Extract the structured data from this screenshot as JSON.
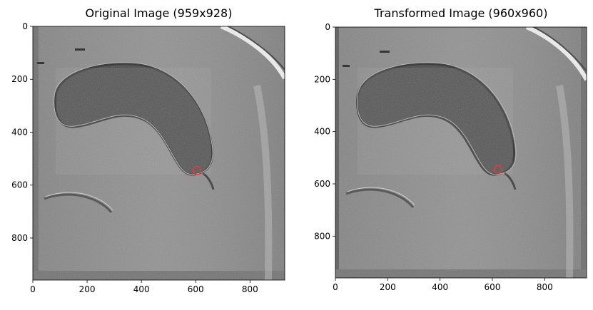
{
  "chart_data": [
    {
      "type": "image",
      "title": "Original Image (959x928)",
      "xlim": [
        0,
        928
      ],
      "ylim": [
        959,
        0
      ],
      "xticks": [
        0,
        200,
        400,
        600,
        800
      ],
      "yticks": [
        0,
        200,
        400,
        600,
        800
      ],
      "marker": {
        "shape": "circle",
        "x": 605,
        "y": 545,
        "radius": 15,
        "color": "#ff3333"
      },
      "colors": {
        "image_base": "#8c8c8c",
        "cell": "#474747",
        "edge": "#e9e9e9"
      }
    },
    {
      "type": "image",
      "title": "Transformed Image (960x960)",
      "xlim": [
        0,
        960
      ],
      "ylim": [
        960,
        0
      ],
      "xticks": [
        0,
        200,
        400,
        600,
        800
      ],
      "yticks": [
        0,
        200,
        400,
        600,
        800
      ],
      "marker": {
        "shape": "circle",
        "x": 622,
        "y": 545,
        "radius": 15,
        "color": "#ff3333"
      },
      "colors": {
        "image_base": "#8c8c8c",
        "cell": "#474747",
        "edge": "#e9e9e9"
      }
    }
  ]
}
